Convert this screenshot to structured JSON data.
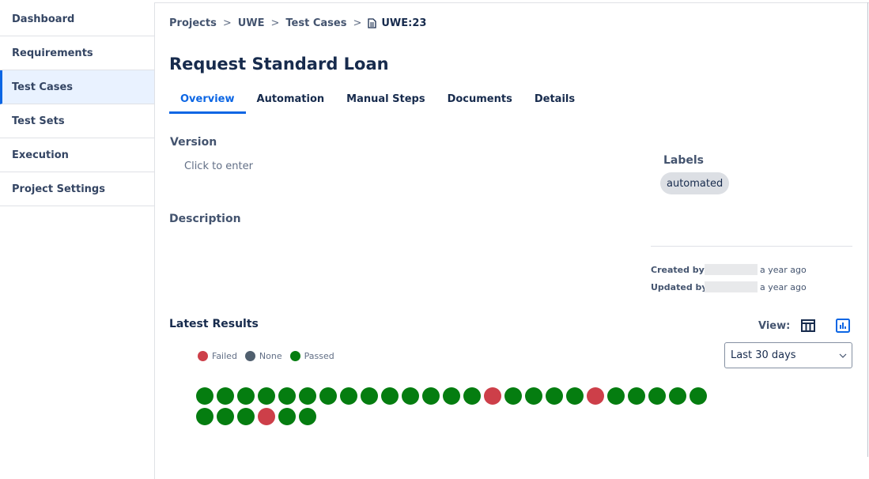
{
  "sidebar": {
    "items": [
      {
        "label": "Dashboard"
      },
      {
        "label": "Requirements"
      },
      {
        "label": "Test Cases",
        "active": true
      },
      {
        "label": "Test Sets"
      },
      {
        "label": "Execution"
      },
      {
        "label": "Project Settings"
      }
    ]
  },
  "breadcrumb": {
    "items": [
      "Projects",
      "UWE",
      "Test Cases"
    ],
    "current": "UWE:23",
    "separator": ">"
  },
  "title": "Request Standard Loan",
  "tabs": [
    {
      "label": "Overview",
      "active": true
    },
    {
      "label": "Automation"
    },
    {
      "label": "Manual Steps"
    },
    {
      "label": "Documents"
    },
    {
      "label": "Details"
    }
  ],
  "version": {
    "label": "Version",
    "placeholder": "Click to enter"
  },
  "description": {
    "label": "Description"
  },
  "labels": {
    "label": "Labels",
    "items": [
      "automated"
    ]
  },
  "meta": {
    "created_label": "Created by:",
    "created_time": "a year ago",
    "updated_label": "Updated by:",
    "updated_time": "a year ago"
  },
  "results": {
    "label": "Latest Results",
    "view_label": "View:",
    "range": "Last 30 days",
    "legend": [
      {
        "label": "Failed",
        "color": "#cd3f49"
      },
      {
        "label": "None",
        "color": "#505f6e"
      },
      {
        "label": "Passed",
        "color": "#057d10"
      }
    ],
    "statuses": [
      "Passed",
      "Passed",
      "Passed",
      "Passed",
      "Passed",
      "Passed",
      "Passed",
      "Passed",
      "Passed",
      "Passed",
      "Passed",
      "Passed",
      "Passed",
      "Passed",
      "Failed",
      "Passed",
      "Passed",
      "Passed",
      "Passed",
      "Failed",
      "Passed",
      "Passed",
      "Passed",
      "Passed",
      "Passed",
      "Passed",
      "Passed",
      "Passed",
      "Failed",
      "Passed",
      "Passed"
    ]
  },
  "colors": {
    "accent": "#0c66e4"
  }
}
